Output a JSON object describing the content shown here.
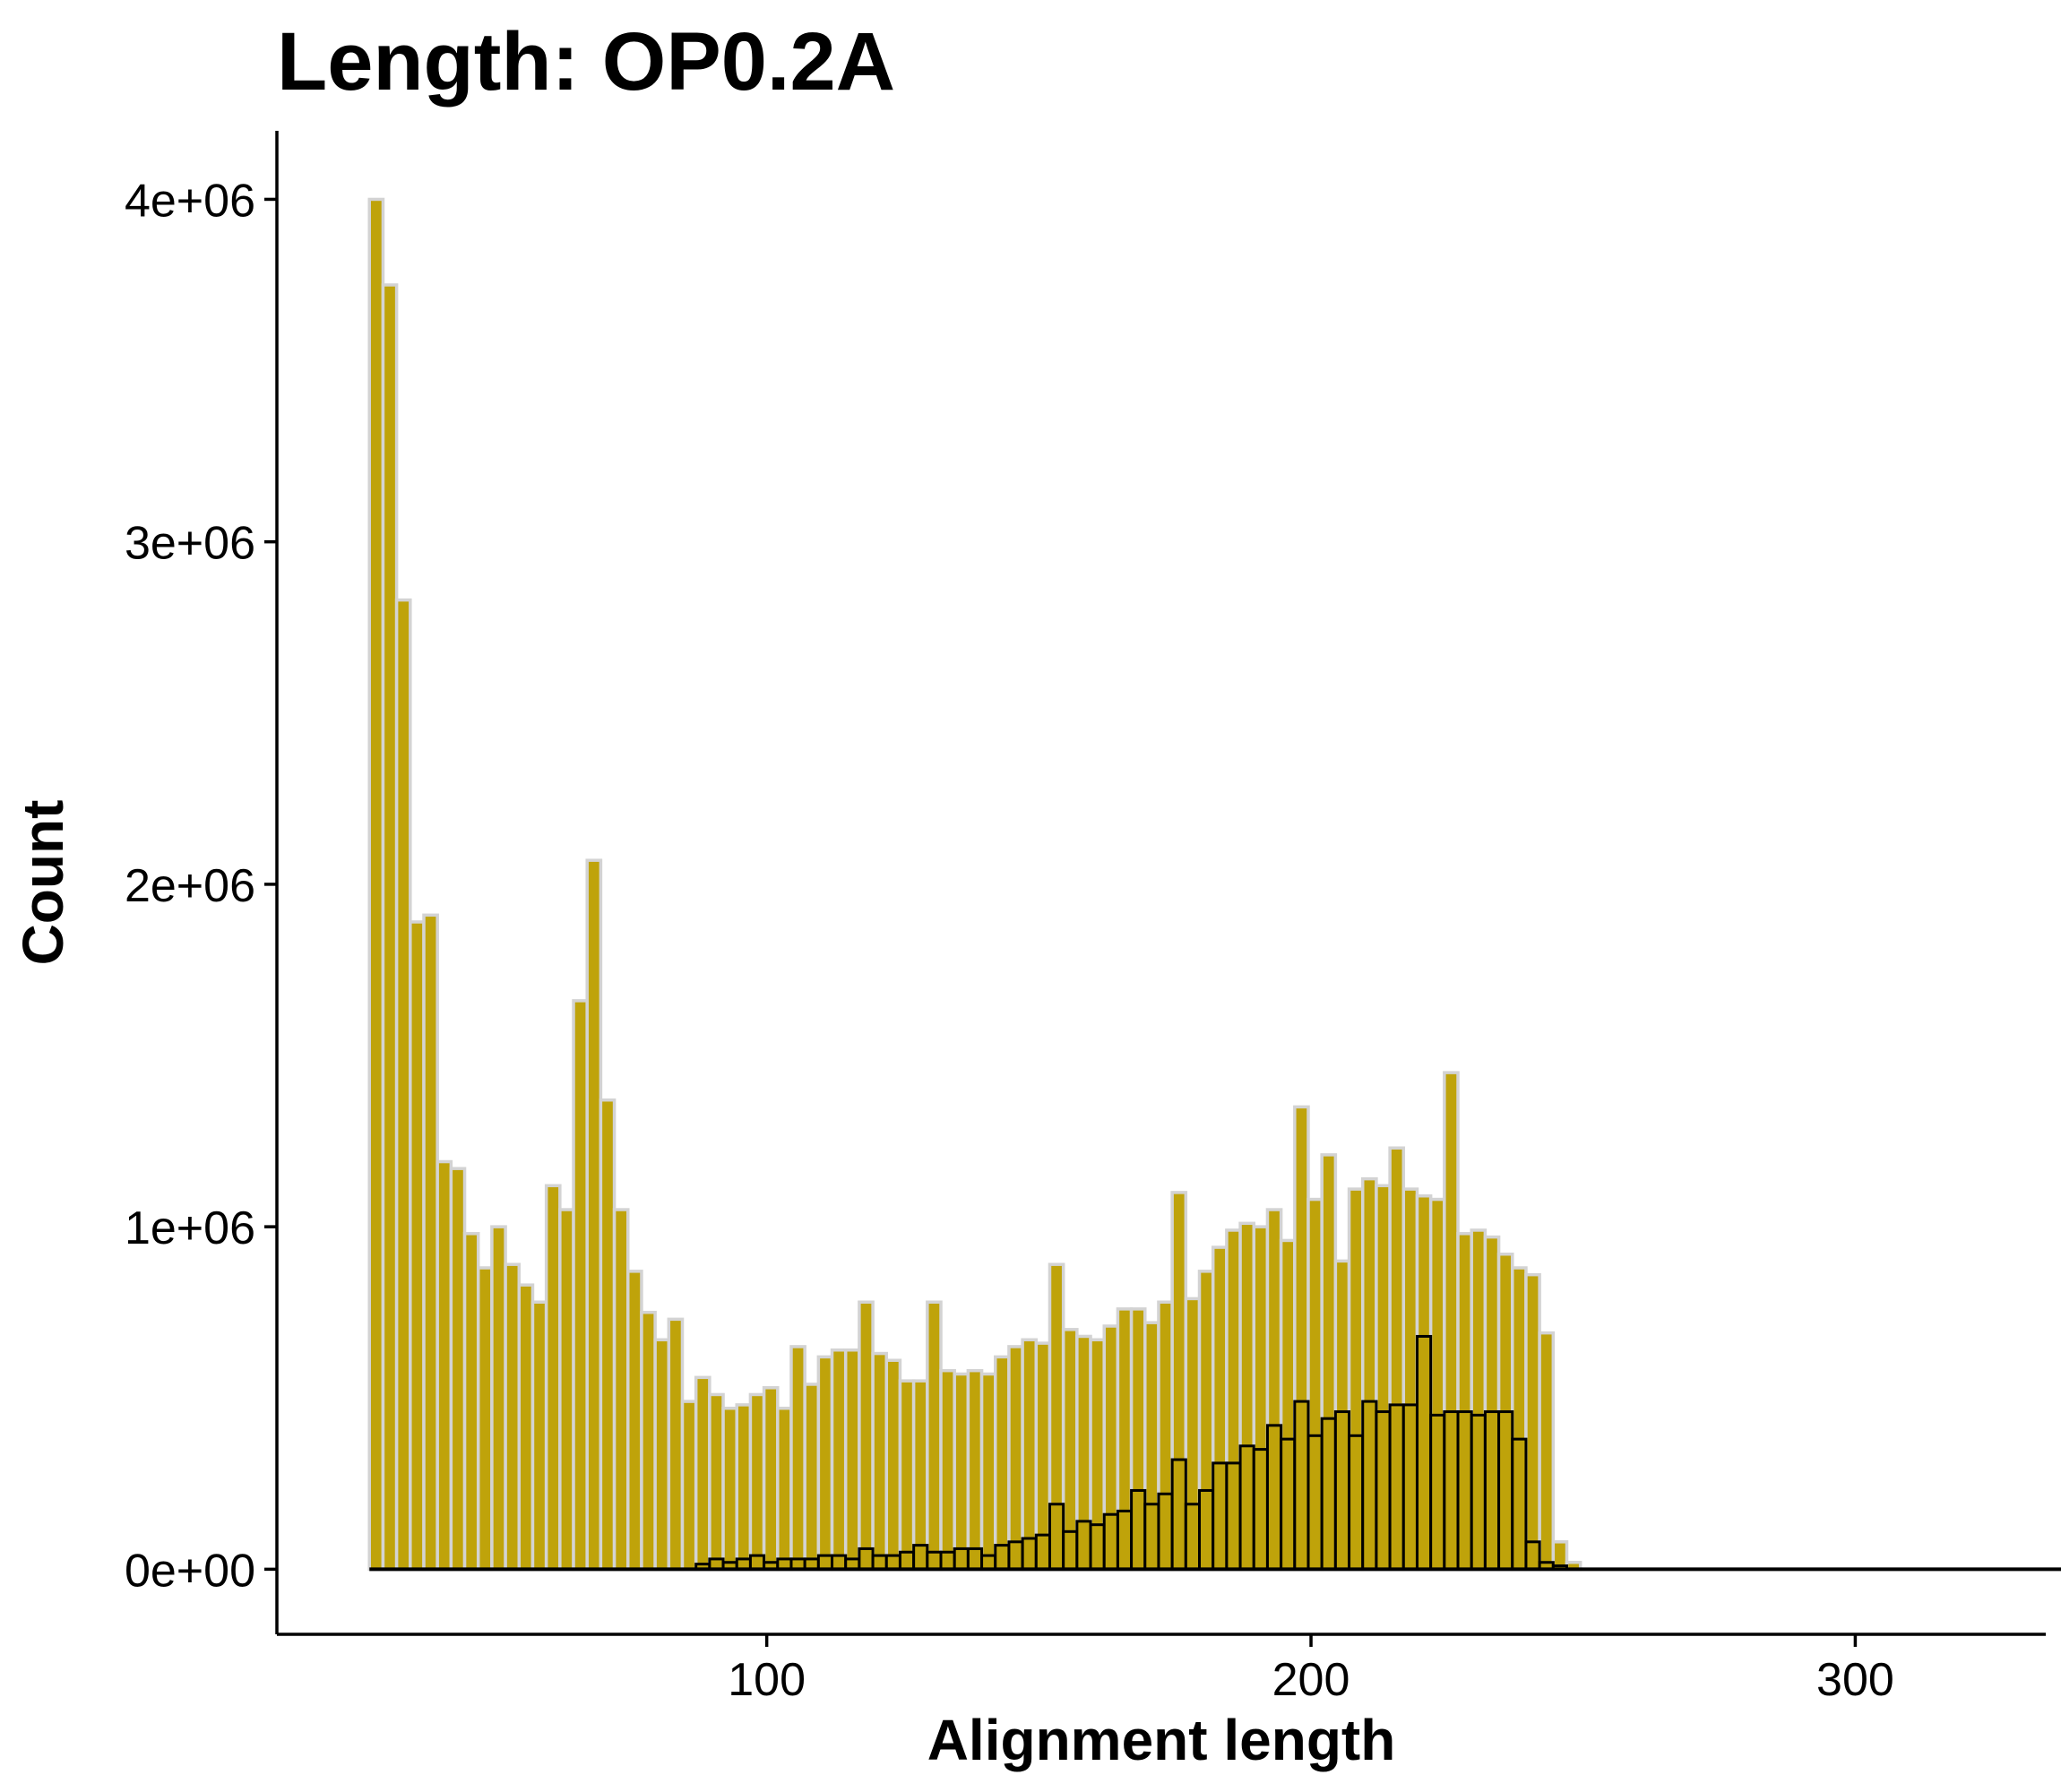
{
  "chart_data": {
    "type": "bar",
    "title": "Length: OP0.2A",
    "xlabel": "Alignment length",
    "ylabel": "Count",
    "xlim": [
      10,
      335
    ],
    "ylim": [
      -190000,
      4200000
    ],
    "x_ticks": [
      100,
      200,
      300
    ],
    "x_tick_labels": [
      "100",
      "200",
      "300"
    ],
    "y_ticks": [
      0,
      1000000,
      2000000,
      3000000,
      4000000
    ],
    "y_tick_labels": [
      "0e+00",
      "1e+06",
      "2e+06",
      "3e+06",
      "4e+06"
    ],
    "grid": false,
    "bin_width": 2.5,
    "x_start": 27,
    "baseline_end": 338,
    "series": [
      {
        "fill": "#BFA30A",
        "outline": "#D3D3D3",
        "values": [
          4000000,
          3750000,
          2830000,
          1890000,
          1910000,
          1190000,
          1170000,
          980000,
          880000,
          1000000,
          890000,
          830000,
          780000,
          1120000,
          1050000,
          1660000,
          2070000,
          1370000,
          1050000,
          870000,
          750000,
          670000,
          730000,
          490000,
          560000,
          510000,
          470000,
          480000,
          510000,
          530000,
          470000,
          650000,
          540000,
          620000,
          640000,
          640000,
          780000,
          630000,
          610000,
          550000,
          550000,
          780000,
          580000,
          570000,
          580000,
          570000,
          620000,
          650000,
          670000,
          660000,
          890000,
          700000,
          680000,
          670000,
          710000,
          760000,
          760000,
          720000,
          780000,
          1100000,
          790000,
          870000,
          940000,
          990000,
          1010000,
          1000000,
          1050000,
          960000,
          1350000,
          1080000,
          1210000,
          900000,
          1110000,
          1140000,
          1120000,
          1230000,
          1110000,
          1090000,
          1080000,
          1450000,
          980000,
          990000,
          970000,
          920000,
          880000,
          860000,
          690000,
          80000,
          20000,
          0,
          0,
          0,
          0,
          0,
          0,
          0,
          0,
          0,
          0,
          0,
          0,
          0,
          0,
          0,
          0,
          0,
          0,
          0,
          0,
          0,
          0,
          0,
          0,
          0,
          0
        ]
      },
      {
        "fill": "#BFA30A",
        "outline": "#000000",
        "values": [
          0,
          0,
          0,
          0,
          0,
          0,
          0,
          0,
          0,
          0,
          0,
          0,
          0,
          0,
          0,
          0,
          0,
          0,
          0,
          0,
          0,
          0,
          0,
          0,
          15000,
          30000,
          20000,
          30000,
          40000,
          20000,
          30000,
          30000,
          30000,
          40000,
          40000,
          30000,
          60000,
          40000,
          40000,
          50000,
          70000,
          50000,
          50000,
          60000,
          60000,
          40000,
          70000,
          80000,
          90000,
          100000,
          190000,
          110000,
          140000,
          130000,
          160000,
          170000,
          230000,
          190000,
          220000,
          320000,
          190000,
          230000,
          310000,
          310000,
          360000,
          350000,
          420000,
          380000,
          490000,
          390000,
          440000,
          460000,
          390000,
          490000,
          460000,
          480000,
          480000,
          680000,
          450000,
          460000,
          460000,
          450000,
          460000,
          460000,
          380000,
          80000,
          20000,
          10000,
          0,
          0,
          0,
          0,
          0,
          0,
          0,
          0,
          0,
          0,
          0,
          0,
          0,
          0,
          0,
          0,
          0,
          0,
          0,
          0,
          0,
          0,
          0,
          0,
          0,
          0,
          0,
          0
        ]
      }
    ]
  }
}
